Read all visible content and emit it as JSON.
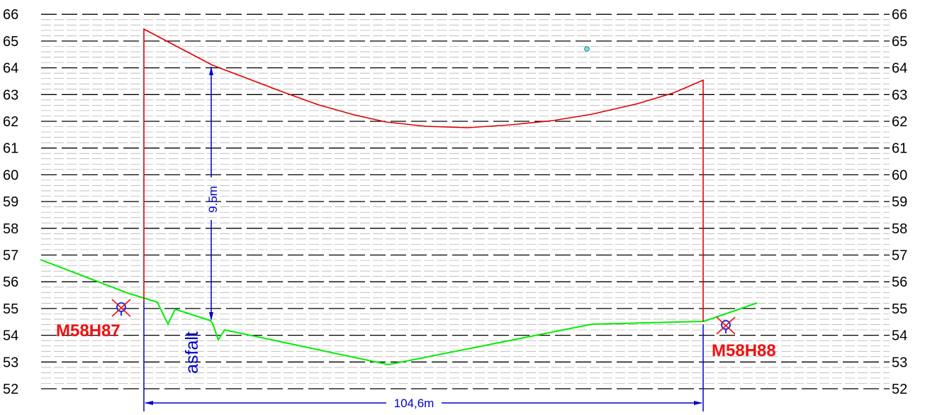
{
  "y_axis": {
    "ticks": [
      "52",
      "53",
      "54",
      "55",
      "56",
      "57",
      "58",
      "59",
      "60",
      "61",
      "62",
      "63",
      "64",
      "65",
      "66"
    ]
  },
  "dimensions": {
    "span": "104,6m",
    "height": "9.5m"
  },
  "labels": {
    "surface": "asfalt",
    "marker_left": "M58H87",
    "marker_right": "M58H88"
  },
  "colors": {
    "grid": "#000000",
    "terrain": "#00ee00",
    "pole_line": "#e00000",
    "dimension": "#0000cc",
    "marker_text": "#ee1111",
    "survey_point": "#009999"
  },
  "icons": {
    "markers": "crossed-circle-icon",
    "survey_point": "survey-point-icon"
  }
}
